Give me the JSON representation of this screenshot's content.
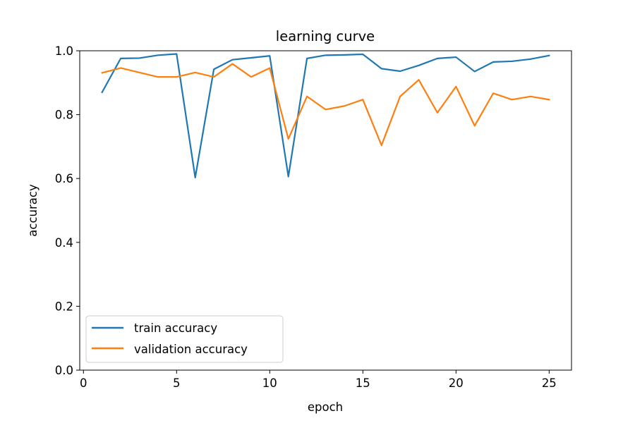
{
  "chart_data": {
    "type": "line",
    "title": "learning curve",
    "xlabel": "epoch",
    "ylabel": "accuracy",
    "xlim": [
      -0.2,
      26.2
    ],
    "ylim": [
      0.0,
      1.0
    ],
    "xticks": [
      0,
      5,
      10,
      15,
      20,
      25
    ],
    "xtick_labels": [
      "0",
      "5",
      "10",
      "15",
      "20",
      "25"
    ],
    "yticks": [
      0.0,
      0.2,
      0.4,
      0.6,
      0.8,
      1.0
    ],
    "ytick_labels": [
      "0.0",
      "0.2",
      "0.4",
      "0.6",
      "0.8",
      "1.0"
    ],
    "grid": false,
    "legend_position": "lower-left",
    "x": [
      1,
      2,
      3,
      4,
      5,
      6,
      7,
      8,
      9,
      10,
      11,
      12,
      13,
      14,
      15,
      16,
      17,
      18,
      19,
      20,
      21,
      22,
      23,
      24,
      25
    ],
    "series": [
      {
        "name": "train accuracy",
        "color": "#1f77b4",
        "values": [
          0.87,
          0.976,
          0.977,
          0.986,
          0.99,
          0.603,
          0.942,
          0.972,
          0.978,
          0.984,
          0.606,
          0.976,
          0.986,
          0.987,
          0.989,
          0.944,
          0.936,
          0.954,
          0.976,
          0.98,
          0.935,
          0.965,
          0.967,
          0.974,
          0.985
        ]
      },
      {
        "name": "validation accuracy",
        "color": "#ff7f0e",
        "values": [
          0.931,
          0.946,
          0.932,
          0.918,
          0.918,
          0.932,
          0.918,
          0.959,
          0.918,
          0.946,
          0.724,
          0.857,
          0.816,
          0.827,
          0.847,
          0.704,
          0.857,
          0.909,
          0.806,
          0.888,
          0.765,
          0.867,
          0.847,
          0.857,
          0.847
        ]
      }
    ]
  }
}
